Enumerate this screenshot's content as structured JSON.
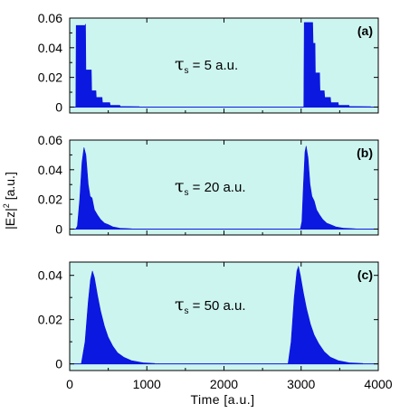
{
  "figure": {
    "ylabel_main": "|Ez|",
    "ylabel_sup": "2",
    "ylabel_unit": " [a.u.]",
    "xlabel": "Time [a.u.]"
  },
  "style": {
    "plot_bg": "#cdf5f0",
    "pulse_color": "#0a18e0",
    "frame_color": "#000000"
  },
  "chart_data": [
    {
      "type": "area",
      "panel_label": "(a)",
      "tau_symbol": "τ",
      "tau_sub": "s",
      "tau_text": " = 5 a.u.",
      "xlim": [
        0,
        4000
      ],
      "ylim": [
        -0.004,
        0.06
      ],
      "yticks": [
        0,
        0.02,
        0.04,
        0.06
      ],
      "ytick_labels": [
        "0",
        "0.02",
        "0.04",
        "0.06"
      ],
      "xticks": [
        0,
        1000,
        2000,
        3000,
        4000
      ],
      "grid": false,
      "envelope": [
        {
          "t": 80,
          "v": 0
        },
        {
          "t": 85,
          "v": 0.055
        },
        {
          "t": 200,
          "v": 0.055
        },
        {
          "t": 205,
          "v": 0.056
        },
        {
          "t": 210,
          "v": 0.025
        },
        {
          "t": 280,
          "v": 0.025
        },
        {
          "t": 285,
          "v": 0.011
        },
        {
          "t": 340,
          "v": 0.011
        },
        {
          "t": 345,
          "v": 0.0065
        },
        {
          "t": 420,
          "v": 0.0065
        },
        {
          "t": 425,
          "v": 0.003
        },
        {
          "t": 520,
          "v": 0.003
        },
        {
          "t": 525,
          "v": 0.0012
        },
        {
          "t": 650,
          "v": 0.0012
        },
        {
          "t": 655,
          "v": 0.0004
        },
        {
          "t": 900,
          "v": 0.0002
        },
        {
          "t": 3035,
          "v": 0
        },
        {
          "t": 3040,
          "v": 0.057
        },
        {
          "t": 3150,
          "v": 0.057
        },
        {
          "t": 3155,
          "v": 0.043
        },
        {
          "t": 3180,
          "v": 0.043
        },
        {
          "t": 3185,
          "v": 0.023
        },
        {
          "t": 3240,
          "v": 0.023
        },
        {
          "t": 3245,
          "v": 0.011
        },
        {
          "t": 3300,
          "v": 0.011
        },
        {
          "t": 3305,
          "v": 0.0065
        },
        {
          "t": 3380,
          "v": 0.0065
        },
        {
          "t": 3385,
          "v": 0.003
        },
        {
          "t": 3480,
          "v": 0.003
        },
        {
          "t": 3485,
          "v": 0.0012
        },
        {
          "t": 3620,
          "v": 0.0012
        },
        {
          "t": 3625,
          "v": 0.0004
        },
        {
          "t": 3900,
          "v": 0.0002
        }
      ]
    },
    {
      "type": "area",
      "panel_label": "(b)",
      "tau_symbol": "τ",
      "tau_sub": "s",
      "tau_text": " = 20 a.u.",
      "xlim": [
        0,
        4000
      ],
      "ylim": [
        -0.004,
        0.06
      ],
      "yticks": [
        0,
        0.02,
        0.04,
        0.06
      ],
      "ytick_labels": [
        "0",
        "0.02",
        "0.04",
        "0.06"
      ],
      "xticks": [
        0,
        1000,
        2000,
        3000,
        4000
      ],
      "grid": false,
      "envelope": [
        {
          "t": 80,
          "v": 0
        },
        {
          "t": 100,
          "v": 0.002
        },
        {
          "t": 130,
          "v": 0.02
        },
        {
          "t": 160,
          "v": 0.045
        },
        {
          "t": 185,
          "v": 0.055
        },
        {
          "t": 210,
          "v": 0.05
        },
        {
          "t": 240,
          "v": 0.03
        },
        {
          "t": 265,
          "v": 0.022
        },
        {
          "t": 290,
          "v": 0.021
        },
        {
          "t": 320,
          "v": 0.013
        },
        {
          "t": 360,
          "v": 0.0095
        },
        {
          "t": 400,
          "v": 0.0065
        },
        {
          "t": 450,
          "v": 0.004
        },
        {
          "t": 500,
          "v": 0.003
        },
        {
          "t": 560,
          "v": 0.0015
        },
        {
          "t": 650,
          "v": 0.0006
        },
        {
          "t": 800,
          "v": 0.0002
        },
        {
          "t": 2990,
          "v": 0
        },
        {
          "t": 3010,
          "v": 0.005
        },
        {
          "t": 3030,
          "v": 0.03
        },
        {
          "t": 3050,
          "v": 0.052
        },
        {
          "t": 3065,
          "v": 0.056
        },
        {
          "t": 3090,
          "v": 0.048
        },
        {
          "t": 3115,
          "v": 0.03
        },
        {
          "t": 3140,
          "v": 0.022
        },
        {
          "t": 3170,
          "v": 0.019
        },
        {
          "t": 3200,
          "v": 0.013
        },
        {
          "t": 3240,
          "v": 0.0095
        },
        {
          "t": 3280,
          "v": 0.0065
        },
        {
          "t": 3330,
          "v": 0.004
        },
        {
          "t": 3380,
          "v": 0.003
        },
        {
          "t": 3450,
          "v": 0.0015
        },
        {
          "t": 3550,
          "v": 0.0006
        },
        {
          "t": 3700,
          "v": 0.0002
        }
      ]
    },
    {
      "type": "area",
      "panel_label": "(c)",
      "tau_symbol": "τ",
      "tau_sub": "s",
      "tau_text": " = 50 a.u.",
      "xlim": [
        0,
        4000
      ],
      "ylim": [
        -0.003,
        0.046
      ],
      "yticks": [
        0,
        0.02,
        0.04
      ],
      "ytick_labels": [
        "0",
        "0.02",
        "0.04"
      ],
      "xticks": [
        0,
        1000,
        2000,
        3000,
        4000
      ],
      "xtick_labels": [
        "0",
        "1000",
        "2000",
        "3000",
        "4000"
      ],
      "grid": false,
      "envelope": [
        {
          "t": 150,
          "v": 0
        },
        {
          "t": 200,
          "v": 0.01
        },
        {
          "t": 240,
          "v": 0.028
        },
        {
          "t": 270,
          "v": 0.038
        },
        {
          "t": 295,
          "v": 0.042
        },
        {
          "t": 320,
          "v": 0.039
        },
        {
          "t": 360,
          "v": 0.031
        },
        {
          "t": 400,
          "v": 0.024
        },
        {
          "t": 450,
          "v": 0.017
        },
        {
          "t": 500,
          "v": 0.012
        },
        {
          "t": 560,
          "v": 0.008
        },
        {
          "t": 620,
          "v": 0.005
        },
        {
          "t": 700,
          "v": 0.003
        },
        {
          "t": 800,
          "v": 0.0015
        },
        {
          "t": 950,
          "v": 0.0005
        },
        {
          "t": 1100,
          "v": 0.0002
        },
        {
          "t": 2830,
          "v": 0
        },
        {
          "t": 2870,
          "v": 0.01
        },
        {
          "t": 2910,
          "v": 0.03
        },
        {
          "t": 2945,
          "v": 0.042
        },
        {
          "t": 2965,
          "v": 0.044
        },
        {
          "t": 2990,
          "v": 0.04
        },
        {
          "t": 3030,
          "v": 0.032
        },
        {
          "t": 3070,
          "v": 0.025
        },
        {
          "t": 3120,
          "v": 0.018
        },
        {
          "t": 3170,
          "v": 0.013
        },
        {
          "t": 3230,
          "v": 0.009
        },
        {
          "t": 3300,
          "v": 0.0055
        },
        {
          "t": 3380,
          "v": 0.003
        },
        {
          "t": 3480,
          "v": 0.0015
        },
        {
          "t": 3620,
          "v": 0.0005
        },
        {
          "t": 3800,
          "v": 0.0002
        }
      ]
    }
  ]
}
